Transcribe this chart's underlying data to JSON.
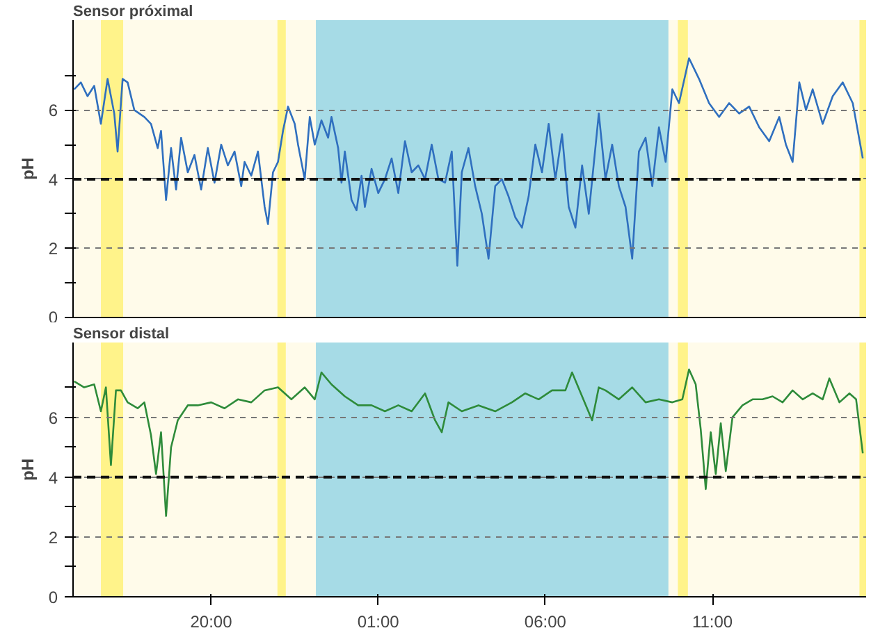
{
  "chart_data": [
    {
      "type": "line",
      "title": "Sensor próximal",
      "ylabel": "pH",
      "tick_labels": "y",
      "grid": "y",
      "line_style": "solid",
      "xlim": [
        "2000-01-01T15:52",
        "2000-01-02T15:36"
      ],
      "ylim": [
        0,
        8.6
      ],
      "yticks": [
        0,
        {
          "value": 1,
          "label": null
        },
        2,
        {
          "value": 3,
          "label": null
        },
        4,
        {
          "value": 5,
          "label": null
        },
        6,
        {
          "value": 7,
          "label": null
        }
      ],
      "bands": [
        {
          "axis": "x",
          "from": "2000-01-01T16:42",
          "to": "2000-01-01T17:22",
          "color": "#fff38a"
        },
        {
          "axis": "x",
          "from": "2000-01-01T21:59",
          "to": "2000-01-01T22:14",
          "color": "#fff38a"
        },
        {
          "axis": "x",
          "from": "2000-01-01T23:08",
          "to": "2000-01-02T09:41",
          "color": "#a6dbe6"
        },
        {
          "axis": "x",
          "from": "2000-01-02T09:58",
          "to": "2000-01-02T10:16",
          "color": "#fff38a"
        },
        {
          "axis": "x",
          "from": "2000-01-02T15:24",
          "to": "2000-01-02T15:36",
          "color": "#fff38a"
        }
      ],
      "ref_lines": [
        {
          "axis": "y",
          "value": 4,
          "color": "#111111",
          "line_style": "dashed"
        }
      ],
      "series": [
        {
          "color": "#2f6fbf",
          "x": [
            "2000-01-01T15:54",
            "2000-01-01T16:06",
            "2000-01-01T16:18",
            "2000-01-01T16:30",
            "2000-01-01T16:42",
            "2000-01-01T16:54",
            "2000-01-01T17:06",
            "2000-01-01T17:12",
            "2000-01-01T17:21",
            "2000-01-01T17:30",
            "2000-01-01T17:42",
            "2000-01-01T18:00",
            "2000-01-01T18:12",
            "2000-01-01T18:24",
            "2000-01-01T18:30",
            "2000-01-01T18:39",
            "2000-01-01T18:48",
            "2000-01-01T18:57",
            "2000-01-01T19:06",
            "2000-01-01T19:18",
            "2000-01-01T19:30",
            "2000-01-01T19:42",
            "2000-01-01T19:54",
            "2000-01-01T20:06",
            "2000-01-01T20:18",
            "2000-01-01T20:30",
            "2000-01-01T20:42",
            "2000-01-01T20:54",
            "2000-01-01T21:00",
            "2000-01-01T21:12",
            "2000-01-01T21:24",
            "2000-01-01T21:36",
            "2000-01-01T21:42",
            "2000-01-01T21:51",
            "2000-01-01T22:00",
            "2000-01-01T22:09",
            "2000-01-01T22:18",
            "2000-01-01T22:30",
            "2000-01-01T22:36",
            "2000-01-01T22:48",
            "2000-01-01T22:57",
            "2000-01-01T23:06",
            "2000-01-01T23:18",
            "2000-01-01T23:30",
            "2000-01-01T23:36",
            "2000-01-01T23:48",
            "2000-01-01T23:54",
            "2000-01-02T00:00",
            "2000-01-02T00:12",
            "2000-01-02T00:21",
            "2000-01-02T00:30",
            "2000-01-02T00:36",
            "2000-01-02T00:48",
            "2000-01-02T01:00",
            "2000-01-02T01:12",
            "2000-01-02T01:24",
            "2000-01-02T01:36",
            "2000-01-02T01:48",
            "2000-01-02T02:00",
            "2000-01-02T02:12",
            "2000-01-02T02:24",
            "2000-01-02T02:36",
            "2000-01-02T02:48",
            "2000-01-02T03:00",
            "2000-01-02T03:12",
            "2000-01-02T03:22",
            "2000-01-02T03:30",
            "2000-01-02T03:42",
            "2000-01-02T03:54",
            "2000-01-02T04:06",
            "2000-01-02T04:18",
            "2000-01-02T04:30",
            "2000-01-02T04:42",
            "2000-01-02T04:54",
            "2000-01-02T05:06",
            "2000-01-02T05:18",
            "2000-01-02T05:30",
            "2000-01-02T05:42",
            "2000-01-02T05:54",
            "2000-01-02T06:06",
            "2000-01-02T06:18",
            "2000-01-02T06:30",
            "2000-01-02T06:42",
            "2000-01-02T06:54",
            "2000-01-02T07:06",
            "2000-01-02T07:18",
            "2000-01-02T07:36",
            "2000-01-02T07:48",
            "2000-01-02T08:00",
            "2000-01-02T08:12",
            "2000-01-02T08:24",
            "2000-01-02T08:36",
            "2000-01-02T08:48",
            "2000-01-02T09:00",
            "2000-01-02T09:12",
            "2000-01-02T09:24",
            "2000-01-02T09:36",
            "2000-01-02T09:48",
            "2000-01-02T10:00",
            "2000-01-02T10:18",
            "2000-01-02T10:36",
            "2000-01-02T10:54",
            "2000-01-02T11:12",
            "2000-01-02T11:30",
            "2000-01-02T11:48",
            "2000-01-02T12:06",
            "2000-01-02T12:24",
            "2000-01-02T12:42",
            "2000-01-02T13:00",
            "2000-01-02T13:12",
            "2000-01-02T13:24",
            "2000-01-02T13:36",
            "2000-01-02T13:48",
            "2000-01-02T14:00",
            "2000-01-02T14:18",
            "2000-01-02T14:36",
            "2000-01-02T14:54",
            "2000-01-02T15:12",
            "2000-01-02T15:30"
          ],
          "values": [
            6.6,
            6.8,
            6.4,
            6.7,
            5.6,
            6.9,
            5.9,
            4.8,
            6.9,
            6.8,
            6.0,
            5.8,
            5.6,
            4.9,
            5.4,
            3.4,
            4.9,
            3.7,
            5.2,
            4.2,
            4.7,
            3.7,
            4.9,
            3.9,
            5.0,
            4.4,
            4.8,
            3.8,
            4.5,
            4.1,
            4.8,
            3.2,
            2.7,
            4.2,
            4.5,
            5.4,
            6.1,
            5.6,
            5.0,
            4.0,
            5.8,
            5.0,
            5.7,
            5.2,
            5.8,
            4.9,
            3.9,
            4.8,
            3.4,
            3.1,
            4.1,
            3.2,
            4.3,
            3.6,
            4.0,
            4.6,
            3.6,
            5.1,
            4.2,
            4.4,
            4.0,
            5.0,
            4.0,
            3.9,
            4.8,
            1.5,
            4.2,
            4.9,
            3.8,
            3.0,
            1.7,
            3.8,
            4.0,
            3.5,
            2.9,
            2.6,
            3.5,
            5.0,
            4.2,
            5.6,
            4.0,
            5.3,
            3.2,
            2.6,
            4.4,
            3.0,
            5.9,
            4.0,
            5.0,
            3.8,
            3.2,
            1.7,
            4.8,
            5.2,
            3.8,
            5.5,
            4.5,
            6.6,
            6.2,
            7.5,
            6.9,
            6.2,
            5.8,
            6.2,
            5.9,
            6.1,
            5.5,
            5.1,
            5.8,
            5.0,
            4.5,
            6.8,
            6.0,
            6.6,
            5.6,
            6.4,
            6.8,
            6.2,
            4.6
          ]
        }
      ]
    },
    {
      "type": "line",
      "title": "Sensor distal",
      "ylabel": "pH",
      "grid": "y",
      "line_style": "solid",
      "xlim": [
        "2000-01-01T15:52",
        "2000-01-02T15:36"
      ],
      "xticks": [
        {
          "value": "2000-01-01T20:00",
          "label": "20:00"
        },
        {
          "value": "2000-01-02T01:00",
          "label": "01:00"
        },
        {
          "value": "2000-01-02T06:00",
          "label": "06:00"
        },
        {
          "value": "2000-01-02T11:00",
          "label": "11:00"
        }
      ],
      "ylim": [
        0,
        8.5
      ],
      "yticks": [
        0,
        {
          "value": 1,
          "label": null
        },
        2,
        {
          "value": 3,
          "label": null
        },
        4,
        {
          "value": 5,
          "label": null
        },
        6,
        {
          "value": 7,
          "label": null
        }
      ],
      "bands": [
        {
          "axis": "x",
          "from": "2000-01-01T16:42",
          "to": "2000-01-01T17:22",
          "color": "#fff38a"
        },
        {
          "axis": "x",
          "from": "2000-01-01T21:59",
          "to": "2000-01-01T22:14",
          "color": "#fff38a"
        },
        {
          "axis": "x",
          "from": "2000-01-01T23:08",
          "to": "2000-01-02T09:41",
          "color": "#a6dbe6"
        },
        {
          "axis": "x",
          "from": "2000-01-02T09:58",
          "to": "2000-01-02T10:16",
          "color": "#fff38a"
        },
        {
          "axis": "x",
          "from": "2000-01-02T15:24",
          "to": "2000-01-02T15:36",
          "color": "#fff38a"
        }
      ],
      "ref_lines": [
        {
          "axis": "y",
          "value": 4,
          "color": "#111111",
          "line_style": "dashed"
        }
      ],
      "series": [
        {
          "color": "#2e8b3a",
          "x": [
            "2000-01-01T15:54",
            "2000-01-01T16:12",
            "2000-01-01T16:30",
            "2000-01-01T16:42",
            "2000-01-01T16:51",
            "2000-01-01T17:00",
            "2000-01-01T17:09",
            "2000-01-01T17:18",
            "2000-01-01T17:30",
            "2000-01-01T17:48",
            "2000-01-01T18:00",
            "2000-01-01T18:12",
            "2000-01-01T18:21",
            "2000-01-01T18:30",
            "2000-01-01T18:39",
            "2000-01-01T18:48",
            "2000-01-01T19:00",
            "2000-01-01T19:18",
            "2000-01-01T19:36",
            "2000-01-01T20:00",
            "2000-01-01T20:24",
            "2000-01-01T20:48",
            "2000-01-01T21:12",
            "2000-01-01T21:36",
            "2000-01-01T22:00",
            "2000-01-01T22:24",
            "2000-01-01T22:48",
            "2000-01-01T23:06",
            "2000-01-01T23:18",
            "2000-01-01T23:36",
            "2000-01-02T00:00",
            "2000-01-02T00:24",
            "2000-01-02T00:48",
            "2000-01-02T01:12",
            "2000-01-02T01:36",
            "2000-01-02T02:00",
            "2000-01-02T02:24",
            "2000-01-02T02:42",
            "2000-01-02T02:54",
            "2000-01-02T03:06",
            "2000-01-02T03:30",
            "2000-01-02T04:00",
            "2000-01-02T04:30",
            "2000-01-02T05:00",
            "2000-01-02T05:24",
            "2000-01-02T05:48",
            "2000-01-02T06:12",
            "2000-01-02T06:36",
            "2000-01-02T06:48",
            "2000-01-02T07:06",
            "2000-01-02T07:24",
            "2000-01-02T07:36",
            "2000-01-02T07:48",
            "2000-01-02T08:12",
            "2000-01-02T08:36",
            "2000-01-02T09:00",
            "2000-01-02T09:24",
            "2000-01-02T09:48",
            "2000-01-02T10:06",
            "2000-01-02T10:18",
            "2000-01-02T10:30",
            "2000-01-02T10:39",
            "2000-01-02T10:48",
            "2000-01-02T10:57",
            "2000-01-02T11:06",
            "2000-01-02T11:15",
            "2000-01-02T11:24",
            "2000-01-02T11:36",
            "2000-01-02T11:54",
            "2000-01-02T12:12",
            "2000-01-02T12:30",
            "2000-01-02T12:48",
            "2000-01-02T13:06",
            "2000-01-02T13:24",
            "2000-01-02T13:42",
            "2000-01-02T14:00",
            "2000-01-02T14:18",
            "2000-01-02T14:30",
            "2000-01-02T14:48",
            "2000-01-02T15:06",
            "2000-01-02T15:18",
            "2000-01-02T15:30"
          ],
          "values": [
            7.2,
            7.0,
            7.1,
            6.2,
            7.0,
            4.4,
            6.9,
            6.9,
            6.5,
            6.3,
            6.5,
            5.4,
            4.1,
            5.5,
            2.7,
            5.0,
            5.9,
            6.4,
            6.4,
            6.5,
            6.3,
            6.6,
            6.5,
            6.9,
            7.0,
            6.6,
            7.0,
            6.6,
            7.5,
            7.1,
            6.7,
            6.4,
            6.4,
            6.2,
            6.4,
            6.2,
            6.8,
            5.9,
            5.5,
            6.5,
            6.2,
            6.4,
            6.2,
            6.5,
            6.8,
            6.6,
            6.9,
            6.9,
            7.5,
            6.7,
            5.9,
            7.0,
            6.9,
            6.6,
            7.0,
            6.5,
            6.6,
            6.5,
            6.6,
            7.6,
            7.1,
            5.6,
            3.6,
            5.5,
            4.1,
            5.8,
            4.2,
            6.0,
            6.4,
            6.6,
            6.6,
            6.7,
            6.5,
            6.9,
            6.6,
            6.8,
            6.6,
            7.3,
            6.5,
            6.8,
            6.6,
            4.8
          ]
        }
      ]
    }
  ]
}
